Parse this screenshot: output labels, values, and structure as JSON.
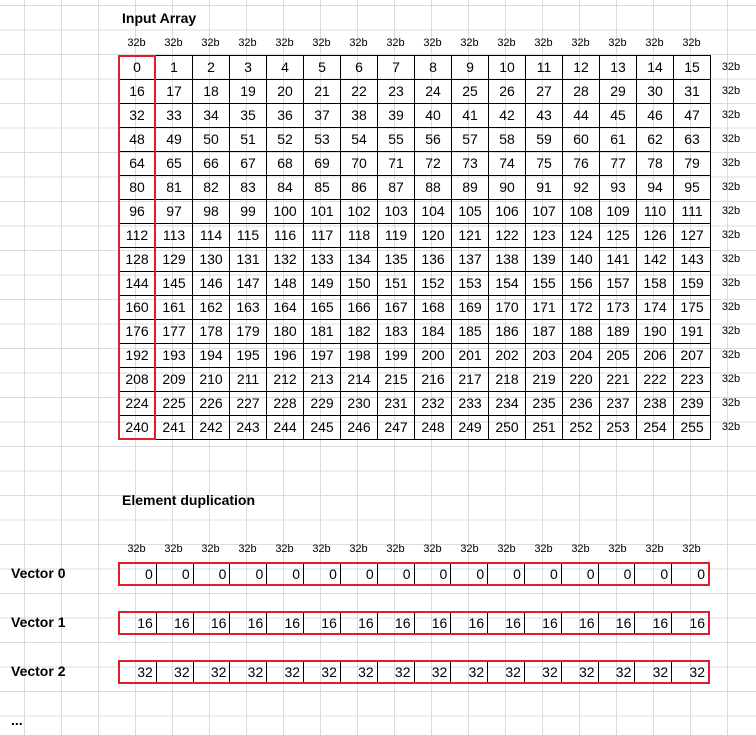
{
  "input_title": "Input Array",
  "dup_title": "Element duplication",
  "col_label": "32b",
  "row_label": "32b",
  "vectors": [
    {
      "label": "Vector 0",
      "value": "0"
    },
    {
      "label": "Vector 1",
      "value": "16"
    },
    {
      "label": "Vector 2",
      "value": "32"
    }
  ],
  "ellipsis": "...",
  "highlight_color": "#e11d2a"
}
